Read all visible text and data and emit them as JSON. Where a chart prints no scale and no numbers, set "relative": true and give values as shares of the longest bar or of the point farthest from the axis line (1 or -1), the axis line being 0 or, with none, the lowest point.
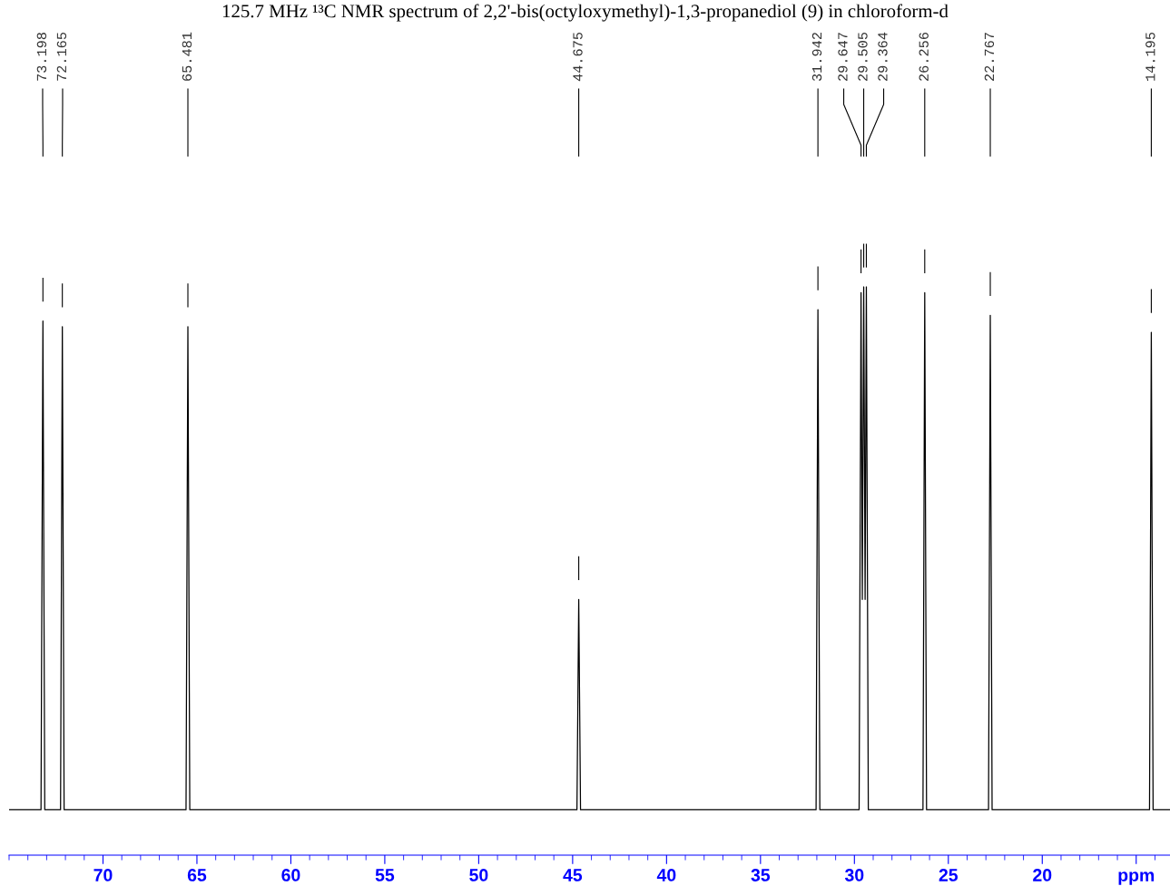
{
  "chart_data": {
    "type": "line",
    "title": "125.7 MHz ¹³C NMR spectrum of 2,2'-bis(octyloxymethyl)-1,3-propanediol (9) in chloroform-d",
    "relative": true,
    "xlim": [
      75,
      13.2
    ],
    "xticks": [
      70,
      65,
      60,
      55,
      50,
      45,
      40,
      35,
      30,
      25,
      20,
      {
        "value": 15,
        "label": "ppm"
      }
    ],
    "grid": false,
    "legend": false,
    "marker": "none",
    "line_style": "solid",
    "series": [
      {
        "color": "#000000",
        "x": [
          75,
          73.3,
          73.198,
          73.1,
          72.26,
          72.165,
          72.07,
          65.58,
          65.481,
          65.38,
          44.77,
          44.675,
          44.58,
          32.04,
          31.942,
          31.84,
          29.75,
          29.647,
          29.58,
          29.505,
          29.43,
          29.364,
          29.26,
          26.35,
          26.256,
          26.16,
          22.86,
          22.767,
          22.67,
          14.29,
          14.195,
          14.1,
          13.2
        ],
        "values": [
          0.08,
          0.08,
          0.94,
          0.08,
          0.08,
          0.93,
          0.08,
          0.08,
          0.93,
          0.08,
          0.08,
          0.45,
          0.08,
          0.08,
          0.96,
          0.08,
          0.08,
          0.99,
          0.45,
          1.0,
          0.45,
          1.0,
          0.08,
          0.08,
          0.99,
          0.08,
          0.08,
          0.95,
          0.08,
          0.08,
          0.92,
          0.08,
          0.08
        ]
      }
    ],
    "annotations": [
      "73.198",
      "72.165",
      "65.481",
      "44.675",
      "31.942",
      "29.647",
      "29.505",
      "29.364",
      "26.256",
      "22.767",
      "14.195"
    ]
  }
}
